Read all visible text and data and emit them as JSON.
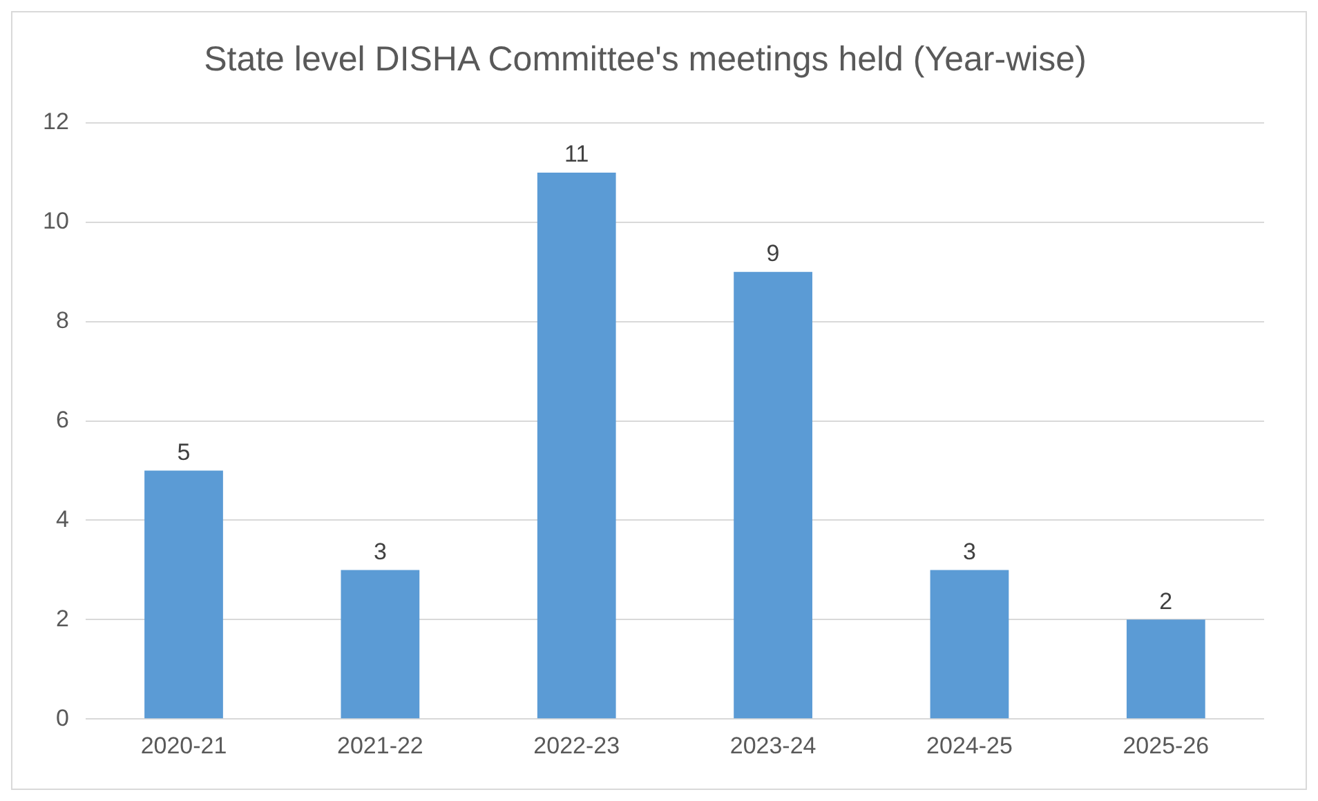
{
  "chart_data": {
    "type": "bar",
    "title": "State level DISHA Committee's meetings held (Year-wise)",
    "categories": [
      "2020-21",
      "2021-22",
      "2022-23",
      "2023-24",
      "2024-25",
      "2025-26"
    ],
    "values": [
      5,
      3,
      11,
      9,
      3,
      2
    ],
    "color": "#5b9bd5",
    "ylim": [
      0,
      12
    ],
    "yticks": [
      0,
      2,
      4,
      6,
      8,
      10,
      12
    ],
    "grid": "y",
    "data_labels": true,
    "legend": false
  }
}
